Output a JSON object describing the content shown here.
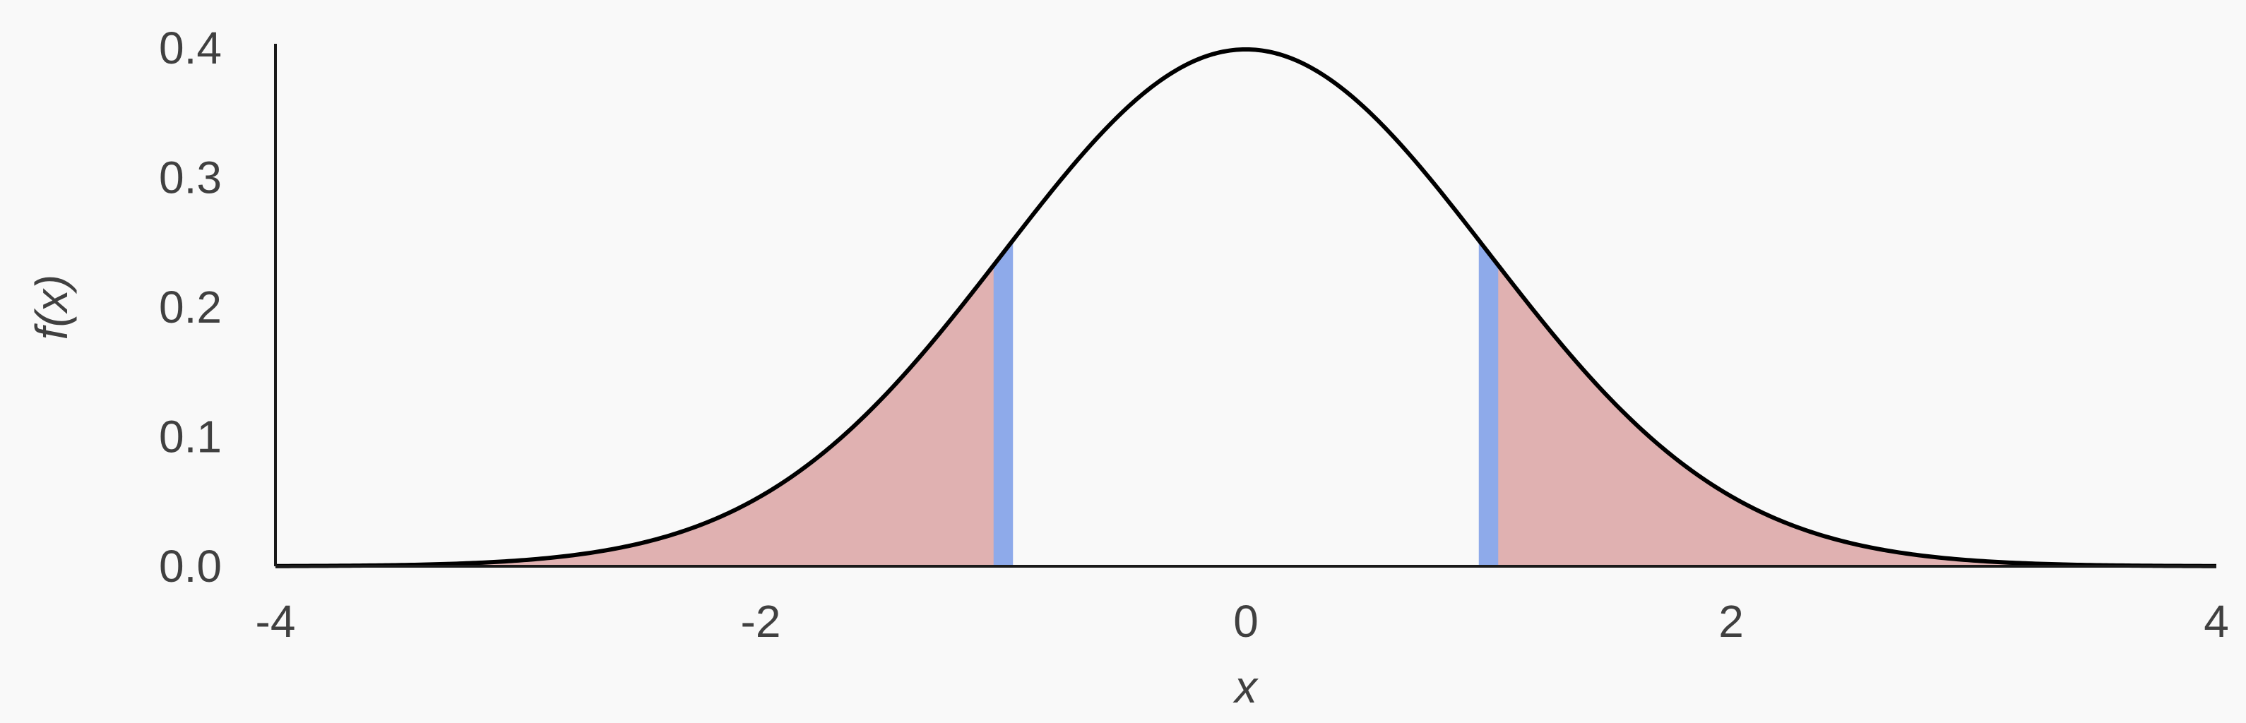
{
  "chart_data": {
    "type": "area",
    "title": "",
    "xlabel": "x",
    "ylabel": "f(x)",
    "xlim": [
      -4,
      4
    ],
    "ylim": [
      0,
      0.4
    ],
    "x_ticks": [
      -4,
      -2,
      0,
      2,
      4
    ],
    "x_tick_labels": [
      "-4",
      "-2",
      "0",
      "2",
      "4"
    ],
    "y_ticks": [
      0,
      0.1,
      0.2,
      0.3,
      0.4
    ],
    "y_tick_labels": [
      "0.0",
      "0.1",
      "0.2",
      "0.3",
      "0.4"
    ],
    "grid": false,
    "legend": "none",
    "curve": {
      "distribution": "standard normal",
      "mean": 0,
      "sd": 1,
      "color": "#000000"
    },
    "shaded_regions": [
      {
        "from": -4,
        "to": -1,
        "color": "#e0b1b1"
      },
      {
        "from": 1,
        "to": 4,
        "color": "#e0b1b1"
      }
    ],
    "boundary_bands": [
      {
        "from": -1.04,
        "to": -0.96,
        "color": "#8eaaea"
      },
      {
        "from": 0.96,
        "to": 1.04,
        "color": "#8eaaea"
      }
    ]
  }
}
